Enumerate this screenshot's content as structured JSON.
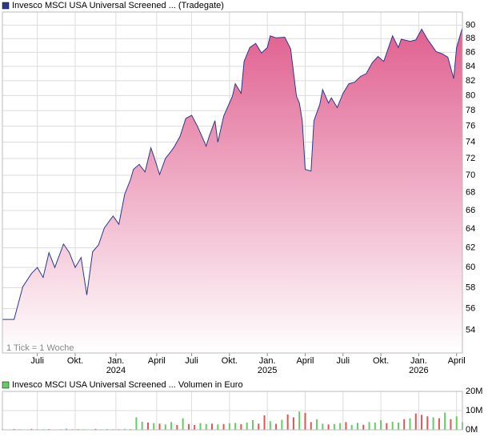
{
  "chart_data": [
    {
      "type": "area",
      "title": "Invesco MSCI USA Universal Screened ... (Tradegate)",
      "annotation": "1 Tick = 1 Woche",
      "color": "#2b3a8c",
      "fill_top": "#e0608f",
      "log_scale": true,
      "grid": true,
      "xlim": [
        0,
        158
      ],
      "xticks": [
        {
          "value": 12,
          "label": "Juli"
        },
        {
          "value": 25,
          "label": "Okt."
        },
        {
          "value": 39,
          "label": "Jan."
        },
        {
          "value": 53,
          "label": "April"
        },
        {
          "value": 65,
          "label": "Juli"
        },
        {
          "value": 78,
          "label": "Okt."
        },
        {
          "value": 91,
          "label": "Jan."
        },
        {
          "value": 104,
          "label": "April"
        },
        {
          "value": 117,
          "label": "Juli"
        },
        {
          "value": 130,
          "label": "Okt."
        },
        {
          "value": 143,
          "label": "Jan."
        },
        {
          "value": 156,
          "label": "April"
        }
      ],
      "year_labels": [
        {
          "value": 39,
          "label": "2024"
        },
        {
          "value": 91,
          "label": "2025"
        },
        {
          "value": 143,
          "label": "2026"
        }
      ],
      "ylim": [
        52,
        92
      ],
      "yticks": [
        54,
        56,
        58,
        60,
        62,
        64,
        66,
        68,
        70,
        72,
        74,
        76,
        78,
        80,
        82,
        84,
        86,
        88,
        90
      ],
      "x": [
        0,
        4,
        7,
        10,
        12,
        14,
        16,
        18,
        21,
        23,
        25,
        27,
        29,
        31,
        33,
        35,
        38,
        40,
        42,
        44,
        45,
        47,
        49,
        51,
        52,
        54,
        56,
        58,
        59,
        61,
        63,
        65,
        67,
        70,
        71,
        73,
        74,
        76,
        79,
        80,
        82,
        83,
        85,
        87,
        89,
        91,
        92,
        94,
        97,
        99,
        101,
        102,
        103,
        104,
        106,
        107,
        109,
        110,
        112,
        113,
        115,
        117,
        119,
        121,
        123,
        125,
        127,
        129,
        131,
        134,
        136,
        137,
        140,
        142,
        144,
        146,
        147,
        149,
        151,
        153,
        155,
        156,
        158
      ],
      "values": [
        55,
        55,
        58.1,
        59.4,
        60,
        59,
        61.5,
        60,
        62.4,
        61.5,
        60,
        61,
        57.3,
        61.6,
        62.3,
        64.1,
        65.4,
        64.5,
        67.8,
        69.5,
        70.7,
        71.3,
        70.4,
        73.3,
        72.3,
        70.1,
        72,
        72.9,
        73.4,
        74.7,
        77,
        77.4,
        76,
        73.5,
        74.7,
        76.7,
        74,
        77.3,
        79.9,
        81.6,
        80.3,
        84.7,
        86.7,
        87.3,
        85.9,
        86.7,
        88.4,
        88.1,
        88.2,
        86.5,
        79.9,
        79,
        76.7,
        70.7,
        70.5,
        76.7,
        78.8,
        80.8,
        79,
        79.7,
        78.4,
        80.3,
        81.6,
        81.8,
        82.6,
        83,
        84.5,
        85.4,
        84.7,
        88.4,
        86.7,
        87.9,
        87.6,
        87.8,
        89.4,
        87.9,
        87.3,
        86.1,
        85.8,
        85.3,
        82.3,
        86.7,
        89.6
      ]
    },
    {
      "type": "bar",
      "title": "Invesco MSCI USA Universal Screened ... Volumen in Euro",
      "legend_color": "#66cc66",
      "grid": true,
      "xlim": [
        0,
        158
      ],
      "ylim": [
        0,
        20000000
      ],
      "yticks": [
        {
          "value": 0,
          "label": "0M"
        },
        {
          "value": 10000000,
          "label": "10M"
        },
        {
          "value": 20000000,
          "label": "20M"
        }
      ],
      "x": [
        0,
        2,
        4,
        6,
        8,
        10,
        12,
        14,
        16,
        18,
        20,
        22,
        24,
        26,
        28,
        30,
        32,
        34,
        36,
        38,
        40,
        42,
        44,
        46,
        48,
        50,
        52,
        54,
        56,
        58,
        60,
        62,
        64,
        66,
        68,
        70,
        72,
        74,
        76,
        78,
        80,
        82,
        84,
        86,
        88,
        90,
        92,
        94,
        96,
        98,
        100,
        102,
        104,
        106,
        108,
        110,
        112,
        114,
        116,
        118,
        120,
        122,
        124,
        126,
        128,
        130,
        132,
        134,
        136,
        138,
        140,
        142,
        144,
        146,
        148,
        150,
        152,
        154,
        156,
        158
      ],
      "values": [
        300000,
        200000,
        400000,
        300000,
        200000,
        500000,
        300000,
        300000,
        400000,
        200000,
        300000,
        600000,
        300000,
        400000,
        300000,
        200000,
        500000,
        300000,
        400000,
        300000,
        300000,
        500000,
        400000,
        6500000,
        4200000,
        3800000,
        3500000,
        3200000,
        2800000,
        4000000,
        2500000,
        6000000,
        3000000,
        2500000,
        3500000,
        3000000,
        3200000,
        2800000,
        3000000,
        3400000,
        3600000,
        2900000,
        3800000,
        5000000,
        3200000,
        7500000,
        4500000,
        3100000,
        5200000,
        8000000,
        6500000,
        9500000,
        8800000,
        4000000,
        5500000,
        3200000,
        2800000,
        3000000,
        3500000,
        4000000,
        2500000,
        3600000,
        2600000,
        4000000,
        3800000,
        5000000,
        3500000,
        4200000,
        3800000,
        5500000,
        6000000,
        8500000,
        7800000,
        7000000,
        6500000,
        6000000,
        9000000,
        5500000,
        7000000,
        4000000
      ],
      "colors": [
        "#66cc66",
        "#66cc66",
        "#dd5555",
        "#66cc66",
        "#66cc66",
        "#dd5555",
        "#66cc66",
        "#66cc66",
        "#dd5555",
        "#66cc66",
        "#66cc66",
        "#66cc66",
        "#dd5555",
        "#66cc66",
        "#66cc66",
        "#66cc66",
        "#dd5555",
        "#66cc66",
        "#66cc66",
        "#66cc66",
        "#dd5555",
        "#66cc66",
        "#66cc66",
        "#66cc66",
        "#66cc66",
        "#dd5555",
        "#66cc66",
        "#dd5555",
        "#66cc66",
        "#66cc66",
        "#dd5555",
        "#66cc66",
        "#dd5555",
        "#dd5555",
        "#66cc66",
        "#66cc66",
        "#dd5555",
        "#66cc66",
        "#dd5555",
        "#66cc66",
        "#66cc66",
        "#dd5555",
        "#66cc66",
        "#66cc66",
        "#dd5555",
        "#dd5555",
        "#66cc66",
        "#dd5555",
        "#66cc66",
        "#dd5555",
        "#dd5555",
        "#66cc66",
        "#dd5555",
        "#dd5555",
        "#66cc66",
        "#66cc66",
        "#dd5555",
        "#66cc66",
        "#66cc66",
        "#dd5555",
        "#66cc66",
        "#66cc66",
        "#dd5555",
        "#66cc66",
        "#66cc66",
        "#66cc66",
        "#dd5555",
        "#66cc66",
        "#66cc66",
        "#dd5555",
        "#66cc66",
        "#dd5555",
        "#dd5555",
        "#dd5555",
        "#66cc66",
        "#dd5555",
        "#66cc66",
        "#dd5555",
        "#66cc66",
        "#66cc66"
      ]
    }
  ]
}
